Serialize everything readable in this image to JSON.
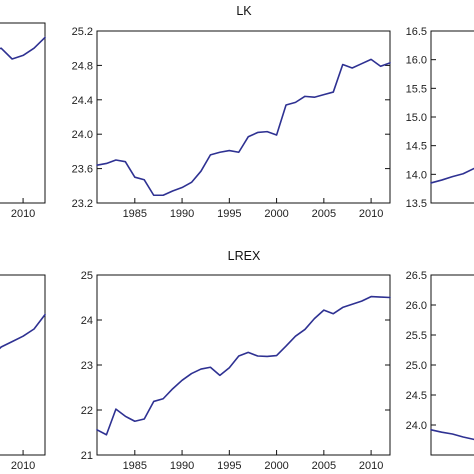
{
  "colors": {
    "line": "#2E3192",
    "frame": "#111111",
    "text": "#222222"
  },
  "chart_data": [
    {
      "type": "line",
      "panel": "top-left (cropped)",
      "title": "",
      "xlim": [
        2006.8,
        2012
      ],
      "ylim": [
        0,
        1
      ],
      "x_ticks": [
        2010
      ],
      "y_ticks": [],
      "x": [
        2006.8,
        2007,
        2008,
        2009,
        2010,
        2011,
        2012
      ],
      "y": [
        0.82,
        0.84,
        0.86,
        0.8,
        0.82,
        0.86,
        0.92
      ]
    },
    {
      "type": "line",
      "panel": "top-center",
      "title": "LK",
      "xlim": [
        1981,
        2012
      ],
      "ylim": [
        23.2,
        25.2
      ],
      "x_ticks": [
        1985,
        1990,
        1995,
        2000,
        2005,
        2010
      ],
      "y_ticks": [
        23.2,
        23.6,
        24.0,
        24.4,
        24.8,
        25.2
      ],
      "y_tick_labels": [
        "23.2",
        "23.6",
        "24.0",
        "24.4",
        "24.8",
        "25.2"
      ],
      "x": [
        1981,
        1982,
        1983,
        1984,
        1985,
        1986,
        1987,
        1988,
        1989,
        1990,
        1991,
        1992,
        1993,
        1994,
        1995,
        1996,
        1997,
        1998,
        1999,
        2000,
        2001,
        2002,
        2003,
        2004,
        2005,
        2006,
        2007,
        2008,
        2009,
        2010,
        2011,
        2012
      ],
      "y": [
        23.64,
        23.66,
        23.7,
        23.68,
        23.5,
        23.47,
        23.29,
        23.29,
        23.34,
        23.38,
        23.44,
        23.57,
        23.76,
        23.79,
        23.81,
        23.79,
        23.97,
        24.02,
        24.03,
        23.99,
        24.34,
        24.37,
        24.44,
        24.43,
        24.46,
        24.49,
        24.81,
        24.77,
        24.82,
        24.87,
        24.79,
        24.83
      ]
    },
    {
      "type": "line",
      "panel": "top-right (cropped)",
      "title": "",
      "xlim": [
        1981,
        1986.6
      ],
      "ylim": [
        13.5,
        16.5
      ],
      "x_ticks": [],
      "y_ticks": [
        13.5,
        14.0,
        14.5,
        15.0,
        15.5,
        16.0,
        16.5
      ],
      "y_tick_labels": [
        "13.5",
        "14.0",
        "14.5",
        "15.0",
        "15.5",
        "16.0",
        "16.5"
      ],
      "x": [
        1981,
        1982,
        1983,
        1984,
        1985,
        1986.6
      ],
      "y": [
        13.85,
        13.9,
        13.96,
        14.01,
        14.1,
        14.13
      ]
    },
    {
      "type": "line",
      "panel": "bottom-left (cropped)",
      "title": "",
      "xlim": [
        2006.8,
        2012
      ],
      "ylim": [
        0,
        1
      ],
      "x_ticks": [
        2010
      ],
      "y_ticks": [],
      "x": [
        2006.8,
        2007,
        2008,
        2009,
        2010,
        2011,
        2012
      ],
      "y": [
        0.5,
        0.54,
        0.6,
        0.63,
        0.66,
        0.7,
        0.78
      ]
    },
    {
      "type": "line",
      "panel": "bottom-center",
      "title": "LREX",
      "xlim": [
        1981,
        2012
      ],
      "ylim": [
        21,
        25
      ],
      "x_ticks": [
        1985,
        1990,
        1995,
        2000,
        2005,
        2010
      ],
      "y_ticks": [
        21,
        22,
        23,
        24,
        25
      ],
      "y_tick_labels": [
        "21",
        "22",
        "23",
        "24",
        "25"
      ],
      "x": [
        1981,
        1982,
        1983,
        1984,
        1985,
        1986,
        1987,
        1988,
        1989,
        1990,
        1991,
        1992,
        1993,
        1994,
        1995,
        1996,
        1997,
        1998,
        1999,
        2000,
        2001,
        2002,
        2003,
        2004,
        2005,
        2006,
        2007,
        2008,
        2009,
        2010,
        2011,
        2012
      ],
      "y": [
        21.56,
        21.45,
        22.02,
        21.86,
        21.75,
        21.8,
        22.19,
        22.25,
        22.47,
        22.66,
        22.81,
        22.91,
        22.95,
        22.77,
        22.94,
        23.2,
        23.28,
        23.2,
        23.19,
        23.21,
        23.42,
        23.64,
        23.79,
        24.03,
        24.22,
        24.14,
        24.28,
        24.35,
        24.42,
        24.52,
        24.51,
        24.5
      ]
    },
    {
      "type": "line",
      "panel": "bottom-right (cropped)",
      "title": "",
      "xlim": [
        1981,
        1986.6
      ],
      "ylim": [
        23.5,
        26.5
      ],
      "x_ticks": [],
      "y_ticks": [
        24.0,
        24.5,
        25.0,
        25.5,
        26.0,
        26.5
      ],
      "y_tick_labels": [
        "24.0",
        "24.5",
        "25.0",
        "25.5",
        "26.0",
        "26.5"
      ],
      "x": [
        1981,
        1982,
        1983,
        1984,
        1985,
        1986.6
      ],
      "y": [
        23.92,
        23.88,
        23.85,
        23.8,
        23.76,
        23.72
      ]
    }
  ]
}
